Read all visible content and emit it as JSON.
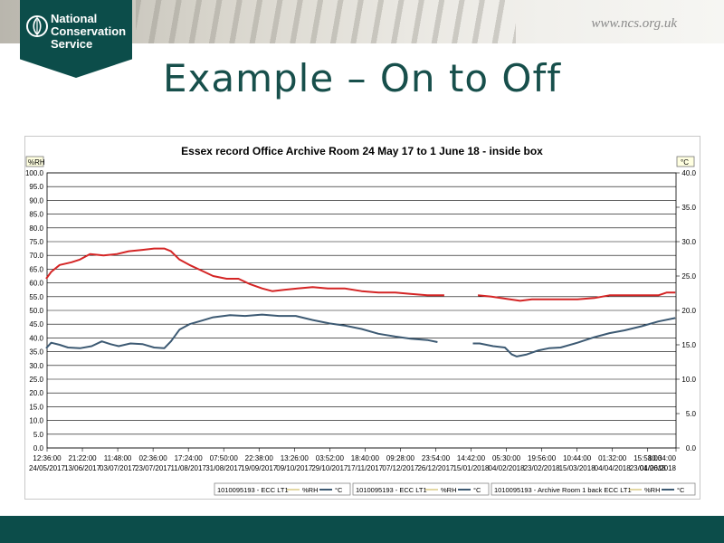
{
  "header": {
    "logo_lines": [
      "National",
      "Conservation",
      "Service"
    ],
    "website": "www.ncs.org.uk"
  },
  "slide": {
    "title": "Example – On to Off"
  },
  "colors": {
    "brand_teal": "#0c4d4a",
    "rh_series": "#d42525",
    "temp_series": "#3d5a73"
  },
  "chart_data": {
    "type": "line",
    "title": "Essex record Office Archive Room 24 May 17 to 1 June 18 - inside box",
    "ylabel_left": "%RH",
    "ylabel_right": "°C",
    "ylim_left": [
      0,
      100
    ],
    "ylim_right": [
      0,
      40
    ],
    "y_ticks_left": [
      "100.0",
      "95.0",
      "90.0",
      "85.0",
      "80.0",
      "75.0",
      "70.0",
      "65.0",
      "60.0",
      "55.0",
      "50.0",
      "45.0",
      "40.0",
      "35.0",
      "30.0",
      "25.0",
      "20.0",
      "15.0",
      "10.0",
      "5.0",
      "0.0"
    ],
    "y_ticks_right": [
      "40.0",
      "35.0",
      "30.0",
      "25.0",
      "20.0",
      "15.0",
      "10.0",
      "5.0",
      "0.0"
    ],
    "grid": true,
    "x_ticks": [
      {
        "time": "12:36:00",
        "date": "24/05/2017"
      },
      {
        "time": "21:22:00",
        "date": "13/06/2017"
      },
      {
        "time": "11:48:00",
        "date": "03/07/2017"
      },
      {
        "time": "02:36:00",
        "date": "23/07/2017"
      },
      {
        "time": "17:24:00",
        "date": "11/08/2017"
      },
      {
        "time": "07:50:00",
        "date": "31/08/2017"
      },
      {
        "time": "22:38:00",
        "date": "19/09/2017"
      },
      {
        "time": "13:26:00",
        "date": "09/10/2017"
      },
      {
        "time": "03:52:00",
        "date": "29/10/2017"
      },
      {
        "time": "18:40:00",
        "date": "17/11/2017"
      },
      {
        "time": "09:28:00",
        "date": "07/12/2017"
      },
      {
        "time": "23:54:00",
        "date": "26/12/2017"
      },
      {
        "time": "14:42:00",
        "date": "15/01/2018"
      },
      {
        "time": "05:30:00",
        "date": "04/02/2018"
      },
      {
        "time": "19:56:00",
        "date": "23/02/2018"
      },
      {
        "time": "10:44:00",
        "date": "15/03/2018"
      },
      {
        "time": "01:32:00",
        "date": "04/04/2018"
      },
      {
        "time": "15:58:00",
        "date": "23/04/2018"
      },
      {
        "time": "10:34:00",
        "date": "01/06/2018"
      }
    ],
    "x_start": "2017-05-24T12:36",
    "x_end": "2018-06-01T10:34",
    "series": [
      {
        "name": "%RH",
        "axis": "left",
        "segments": [
          [
            [
              "2017-05-24",
              61.5
            ],
            [
              "2017-05-27",
              64
            ],
            [
              "2017-06-01",
              66.5
            ],
            [
              "2017-06-08",
              67.5
            ],
            [
              "2017-06-13",
              68.5
            ],
            [
              "2017-06-19",
              70.5
            ],
            [
              "2017-06-27",
              70
            ],
            [
              "2017-07-05",
              70.5
            ],
            [
              "2017-07-12",
              71.5
            ],
            [
              "2017-07-20",
              72
            ],
            [
              "2017-07-27",
              72.5
            ],
            [
              "2017-08-02",
              72.5
            ],
            [
              "2017-08-06",
              71.5
            ],
            [
              "2017-08-11",
              68.5
            ],
            [
              "2017-08-17",
              66.5
            ],
            [
              "2017-08-24",
              64.5
            ],
            [
              "2017-08-31",
              62.5
            ],
            [
              "2017-09-08",
              61.5
            ],
            [
              "2017-09-15",
              61.5
            ],
            [
              "2017-09-22",
              59.5
            ],
            [
              "2017-09-29",
              58
            ],
            [
              "2017-10-05",
              57
            ],
            [
              "2017-10-12",
              57.5
            ],
            [
              "2017-10-20",
              58
            ],
            [
              "2017-10-29",
              58.5
            ],
            [
              "2017-11-07",
              58
            ],
            [
              "2017-11-17",
              58
            ],
            [
              "2017-11-27",
              57
            ],
            [
              "2017-12-07",
              56.5
            ],
            [
              "2017-12-17",
              56.5
            ],
            [
              "2017-12-26",
              56
            ],
            [
              "2018-01-05",
              55.5
            ],
            [
              "2018-01-15",
              55.5
            ]
          ],
          [
            [
              "2018-02-04",
              55.5
            ],
            [
              "2018-02-12",
              55
            ],
            [
              "2018-02-23",
              54
            ],
            [
              "2018-03-01",
              53.5
            ],
            [
              "2018-03-08",
              54
            ],
            [
              "2018-03-15",
              54
            ],
            [
              "2018-03-25",
              54
            ],
            [
              "2018-04-04",
              54
            ],
            [
              "2018-04-14",
              54.5
            ],
            [
              "2018-04-23",
              55.5
            ],
            [
              "2018-05-02",
              55.5
            ],
            [
              "2018-05-12",
              55.5
            ],
            [
              "2018-05-22",
              55.5
            ],
            [
              "2018-05-27",
              56.5
            ],
            [
              "2018-06-01",
              56.5
            ]
          ]
        ]
      },
      {
        "name": "°C",
        "axis": "right",
        "segments": [
          [
            [
              "2017-05-24",
              14.5
            ],
            [
              "2017-05-27",
              15.3
            ],
            [
              "2017-06-01",
              15
            ],
            [
              "2017-06-06",
              14.6
            ],
            [
              "2017-06-13",
              14.5
            ],
            [
              "2017-06-20",
              14.8
            ],
            [
              "2017-06-26",
              15.5
            ],
            [
              "2017-07-01",
              15.1
            ],
            [
              "2017-07-06",
              14.8
            ],
            [
              "2017-07-13",
              15.2
            ],
            [
              "2017-07-20",
              15.1
            ],
            [
              "2017-07-27",
              14.6
            ],
            [
              "2017-08-02",
              14.5
            ],
            [
              "2017-08-06",
              15.5
            ],
            [
              "2017-08-11",
              17.2
            ],
            [
              "2017-08-17",
              18
            ],
            [
              "2017-08-24",
              18.5
            ],
            [
              "2017-08-31",
              19
            ],
            [
              "2017-09-10",
              19.3
            ],
            [
              "2017-09-19",
              19.2
            ],
            [
              "2017-09-29",
              19.4
            ],
            [
              "2017-10-09",
              19.2
            ],
            [
              "2017-10-19",
              19.2
            ],
            [
              "2017-10-29",
              18.6
            ],
            [
              "2017-11-08",
              18.1
            ],
            [
              "2017-11-17",
              17.8
            ],
            [
              "2017-11-27",
              17.3
            ],
            [
              "2017-12-07",
              16.6
            ],
            [
              "2017-12-17",
              16.2
            ],
            [
              "2017-12-26",
              15.9
            ],
            [
              "2018-01-05",
              15.7
            ],
            [
              "2018-01-11",
              15.4
            ]
          ],
          [
            [
              "2018-02-01",
              15.2
            ],
            [
              "2018-02-05",
              15.2
            ],
            [
              "2018-02-13",
              14.8
            ],
            [
              "2018-02-20",
              14.6
            ],
            [
              "2018-02-24",
              13.6
            ],
            [
              "2018-02-27",
              13.3
            ],
            [
              "2018-03-05",
              13.6
            ],
            [
              "2018-03-12",
              14.2
            ],
            [
              "2018-03-18",
              14.5
            ],
            [
              "2018-03-25",
              14.6
            ],
            [
              "2018-04-04",
              15.3
            ],
            [
              "2018-04-14",
              16.1
            ],
            [
              "2018-04-23",
              16.7
            ],
            [
              "2018-05-02",
              17.1
            ],
            [
              "2018-05-12",
              17.7
            ],
            [
              "2018-05-22",
              18.4
            ],
            [
              "2018-06-01",
              18.9
            ]
          ]
        ]
      }
    ],
    "legends": [
      {
        "device": "1010095193 - ECC LT1",
        "rh": "%RH",
        "temp": "°C"
      },
      {
        "device": "1010095193 - ECC LT1",
        "rh": "%RH",
        "temp": "°C"
      },
      {
        "device": "1010095193 - Archive Room 1 back ECC LT1",
        "rh": "%RH",
        "temp": "°C"
      }
    ]
  }
}
